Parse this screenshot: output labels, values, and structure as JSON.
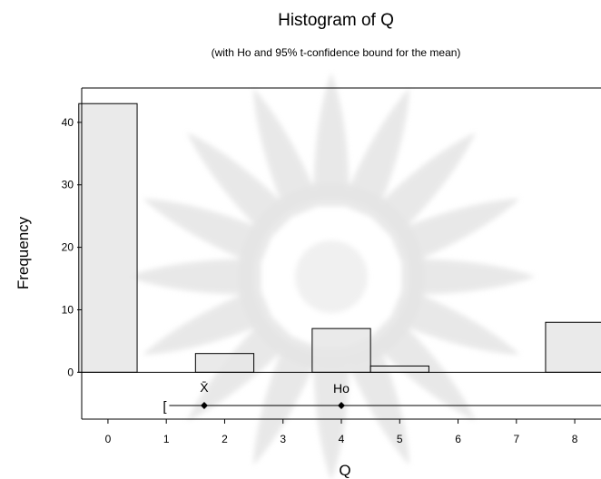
{
  "chart_data": {
    "type": "bar",
    "title": "Histogram of Q",
    "subtitle": "(with Ho and 95% t-confidence bound for the mean)",
    "xlabel": "Q",
    "ylabel": "Frequency",
    "x_ticks": [
      "0",
      "1",
      "2",
      "3",
      "4",
      "5",
      "6",
      "7",
      "8"
    ],
    "y_ticks": [
      "0",
      "10",
      "20",
      "30",
      "40"
    ],
    "xlim": [
      -0.45,
      8.45
    ],
    "ylim": [
      -7.5,
      45.5
    ],
    "categories": [
      0,
      1,
      2,
      3,
      4,
      5,
      6,
      7,
      8
    ],
    "values": [
      43,
      0,
      3,
      0,
      7,
      1,
      0,
      0,
      8
    ],
    "annotations": {
      "mean_label": "X̄",
      "mean": 1.65,
      "ho_label": "Ho",
      "ho": 4,
      "lower_bound": 1.05,
      "bracket": "["
    },
    "colors": {
      "bar_fill": "#e6e6e6",
      "bar_edge": "#000000"
    },
    "background": "faded radial watermark pattern"
  }
}
